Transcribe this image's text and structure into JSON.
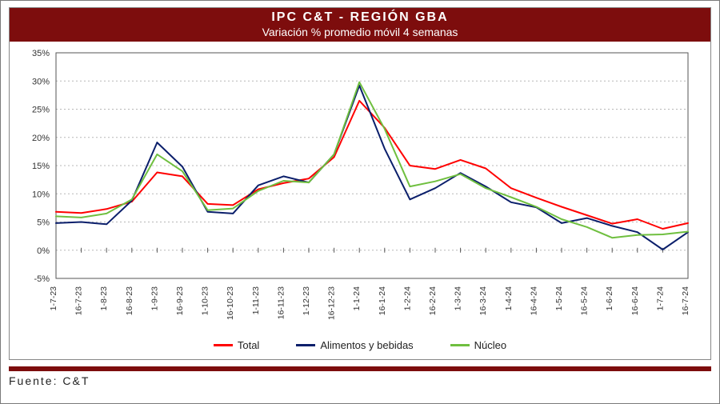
{
  "header": {
    "title": "IPC C&T - REGIÓN GBA",
    "subtitle": "Variación % promedio móvil 4 semanas",
    "bg_color": "#7d0d0d",
    "text_color": "#ffffff",
    "title_fontsize": 16,
    "subtitle_fontsize": 14
  },
  "footer": {
    "separator_color": "#7d0d0d",
    "source_label": "Fuente: C&T"
  },
  "chart": {
    "type": "line",
    "background_color": "#ffffff",
    "plot_border_color": "#555555",
    "grid_color": "#b7b7b7",
    "grid_dash": "2,3",
    "y": {
      "min": -5,
      "max": 35,
      "tick_step": 5,
      "tick_suffix": "%",
      "label_fontsize": 11
    },
    "x": {
      "labels": [
        "1-7-23",
        "16-7-23",
        "1-8-23",
        "16-8-23",
        "1-9-23",
        "16-9-23",
        "1-10-23",
        "16-10-23",
        "1-11-23",
        "16-11-23",
        "1-12-23",
        "16-12-23",
        "1-1-24",
        "16-1-24",
        "1-2-24",
        "16-2-24",
        "1-3-24",
        "16-3-24",
        "1-4-24",
        "16-4-24",
        "1-5-24",
        "16-5-24",
        "1-6-24",
        "16-6-24",
        "1-7-24",
        "16-7-24"
      ],
      "label_fontsize": 10.5,
      "label_rotation": -90
    },
    "series": [
      {
        "name": "Total",
        "color": "#ff0000",
        "line_width": 2,
        "values": [
          6.8,
          6.6,
          7.3,
          8.6,
          13.8,
          13.1,
          8.2,
          8.0,
          10.8,
          11.9,
          12.7,
          16.5,
          26.5,
          21.7,
          15.0,
          14.4,
          16.0,
          14.5,
          11.0,
          9.3,
          7.7,
          6.2,
          4.7,
          5.5,
          3.8,
          4.8
        ]
      },
      {
        "name": "Alimentos y bebidas",
        "color": "#0b1f6b",
        "line_width": 2,
        "values": [
          4.8,
          5.0,
          4.6,
          8.8,
          19.1,
          14.8,
          6.8,
          6.5,
          11.5,
          13.1,
          12.0,
          17.0,
          29.2,
          18.0,
          9.0,
          11.0,
          13.7,
          11.3,
          8.5,
          7.6,
          4.8,
          5.7,
          4.3,
          3.2,
          0.1,
          3.2
        ]
      },
      {
        "name": "Núcleo",
        "color": "#6fbf3f",
        "line_width": 2,
        "values": [
          6.0,
          5.8,
          6.5,
          9.0,
          17.0,
          14.0,
          7.1,
          7.4,
          10.5,
          12.3,
          12.0,
          17.0,
          29.8,
          21.5,
          11.3,
          12.2,
          13.5,
          11.0,
          9.4,
          7.7,
          5.5,
          4.1,
          2.2,
          2.7,
          2.8,
          3.3
        ]
      }
    ],
    "legend": {
      "position": "bottom",
      "fontsize": 13
    }
  }
}
